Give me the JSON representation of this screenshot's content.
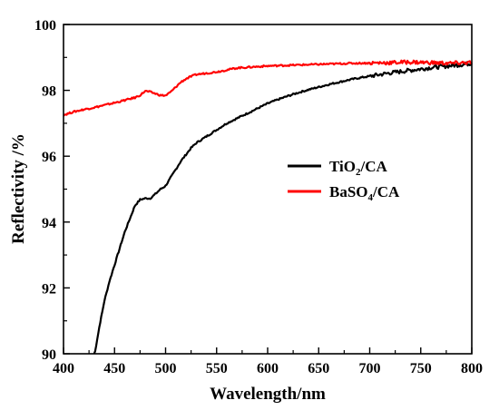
{
  "chart_data": {
    "type": "line",
    "xlabel": "Wavelength/nm",
    "ylabel": "Reflectivity /%",
    "xlim": [
      400,
      800
    ],
    "ylim": [
      90,
      100
    ],
    "xticks": [
      400,
      450,
      500,
      550,
      600,
      650,
      700,
      750,
      800
    ],
    "yticks": [
      90,
      92,
      94,
      96,
      98,
      100
    ],
    "grid": false,
    "legend_position": "right-center",
    "series": [
      {
        "name": "TiO2/CA",
        "legend": {
          "main": "TiO",
          "sub": "2",
          "rest": "/CA"
        },
        "color": "#000000",
        "x": [
          430,
          435,
          440,
          445,
          450,
          455,
          460,
          465,
          470,
          475,
          480,
          485,
          490,
          495,
          500,
          505,
          510,
          515,
          520,
          525,
          530,
          540,
          550,
          560,
          570,
          580,
          590,
          600,
          610,
          620,
          630,
          640,
          650,
          660,
          670,
          680,
          690,
          700,
          710,
          720,
          730,
          740,
          750,
          760,
          770,
          780,
          790,
          800
        ],
        "y": [
          89.9,
          90.8,
          91.6,
          92.2,
          92.7,
          93.2,
          93.7,
          94.1,
          94.5,
          94.68,
          94.72,
          94.72,
          94.85,
          95.0,
          95.1,
          95.35,
          95.6,
          95.85,
          96.05,
          96.25,
          96.4,
          96.6,
          96.8,
          97.0,
          97.15,
          97.3,
          97.45,
          97.6,
          97.72,
          97.83,
          97.93,
          98.02,
          98.1,
          98.18,
          98.25,
          98.32,
          98.38,
          98.43,
          98.48,
          98.53,
          98.57,
          98.61,
          98.65,
          98.69,
          98.72,
          98.75,
          98.78,
          98.82
        ]
      },
      {
        "name": "BaSO4/CA",
        "legend": {
          "main": "BaSO",
          "sub": "4",
          "rest": "/CA"
        },
        "color": "#ff0000",
        "x": [
          400,
          410,
          420,
          430,
          440,
          450,
          460,
          470,
          475,
          480,
          485,
          490,
          495,
          500,
          505,
          510,
          515,
          520,
          525,
          530,
          540,
          550,
          560,
          570,
          580,
          590,
          600,
          620,
          640,
          660,
          680,
          700,
          720,
          740,
          760,
          780,
          800
        ],
        "y": [
          97.25,
          97.35,
          97.42,
          97.48,
          97.55,
          97.62,
          97.7,
          97.78,
          97.85,
          97.98,
          97.95,
          97.9,
          97.85,
          97.84,
          97.95,
          98.1,
          98.25,
          98.35,
          98.42,
          98.48,
          98.52,
          98.56,
          98.62,
          98.68,
          98.7,
          98.72,
          98.74,
          98.76,
          98.78,
          98.8,
          98.82,
          98.83,
          98.84,
          98.86,
          98.84,
          98.82,
          98.85
        ]
      }
    ]
  }
}
